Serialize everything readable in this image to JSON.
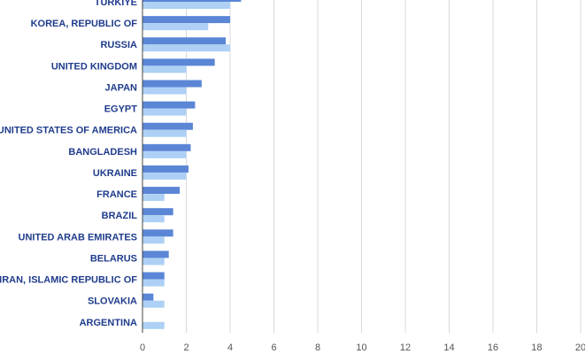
{
  "chart_data": {
    "type": "bar",
    "orientation": "horizontal",
    "categories": [
      "TURKIYE",
      "KOREA, REPUBLIC OF",
      "RUSSIA",
      "UNITED KINGDOM",
      "JAPAN",
      "EGYPT",
      "UNITED STATES OF AMERICA",
      "BANGLADESH",
      "UKRAINE",
      "FRANCE",
      "BRAZIL",
      "UNITED ARAB EMIRATES",
      "BELARUS",
      "IRAN, ISLAMIC REPUBLIC OF",
      "SLOVAKIA",
      "ARGENTINA"
    ],
    "series": [
      {
        "color": "#5b86d6",
        "values": [
          4.5,
          4.0,
          3.8,
          3.3,
          2.7,
          2.4,
          2.3,
          2.2,
          2.1,
          1.7,
          1.4,
          1.4,
          1.2,
          1.0,
          0.5,
          0
        ]
      },
      {
        "color": "#aed0f5",
        "values": [
          4.0,
          3.0,
          4.0,
          2.0,
          2.0,
          2.0,
          2.0,
          2.0,
          2.0,
          1.0,
          1.0,
          1.0,
          1.0,
          1.0,
          1.0,
          1.0
        ]
      }
    ],
    "xlim": [
      0,
      20
    ],
    "xticks": [
      0,
      2,
      4,
      6,
      8,
      10,
      12,
      14,
      16,
      18,
      20
    ],
    "xlabel": "",
    "ylabel": "",
    "title": "",
    "grid": true
  }
}
